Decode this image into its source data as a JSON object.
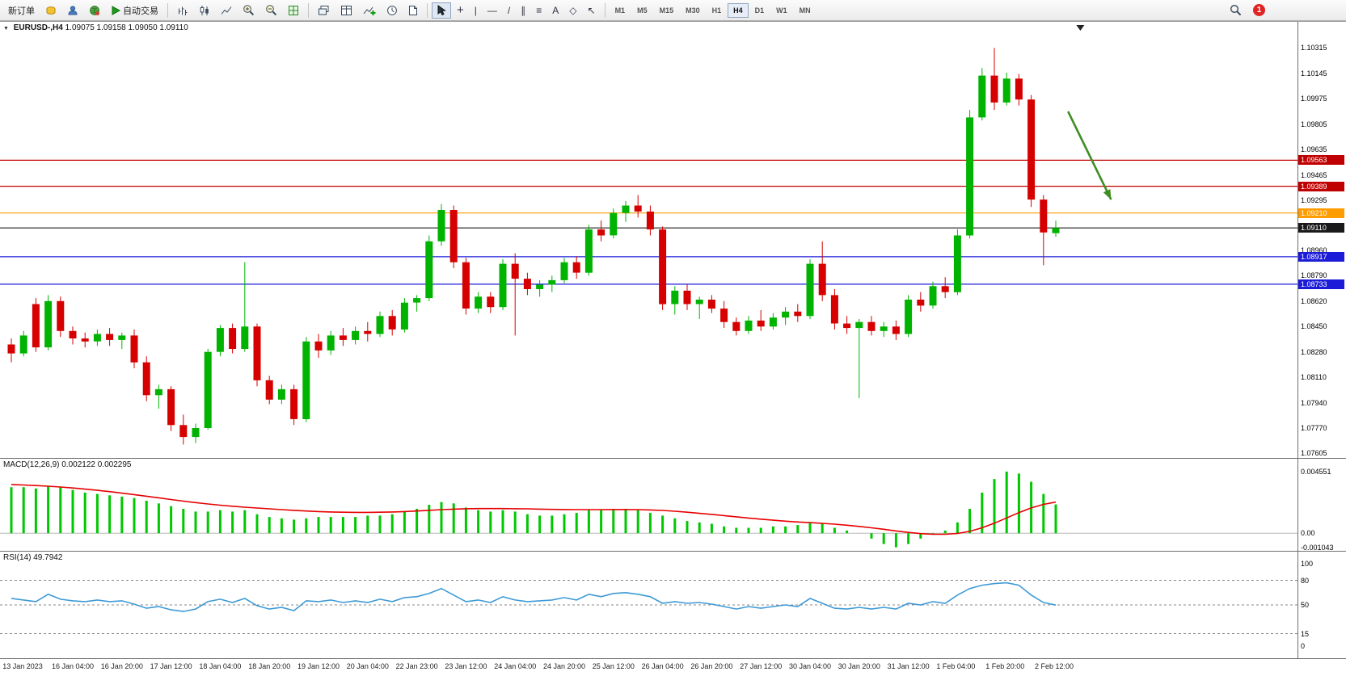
{
  "toolbar": {
    "new_order": "新订单",
    "autotrading": "自动交易",
    "timeframes": [
      "M1",
      "M5",
      "M15",
      "M30",
      "H1",
      "H4",
      "D1",
      "W1",
      "MN"
    ],
    "active_timeframe": "H4",
    "notification_count": "1"
  },
  "glyphs": {
    "collapse": "▼",
    "vline": "|",
    "hline": "—",
    "trendline": "/",
    "channel": "∥",
    "fibonacci": "≡",
    "text_tool": "A",
    "shapes": "◇",
    "arrows": "↖",
    "crosshair": "+"
  },
  "chart": {
    "title": "EURUSD-,H4",
    "ohlc": "1.09075 1.09158 1.09050 1.09110"
  },
  "chart_data": {
    "type": "candlestick",
    "symbol": "EURUSD",
    "period": "H4",
    "ohlc": {
      "open": 1.09075,
      "high": 1.09158,
      "low": 1.0905,
      "close": 1.0911
    },
    "price_range": [
      1.0757,
      1.1049
    ],
    "colors": {
      "up": "#00b300",
      "down": "#d60000"
    },
    "price_axis_ticks": [
      1.10315,
      1.10145,
      1.09975,
      1.09805,
      1.09635,
      1.09465,
      1.09295,
      1.0896,
      1.0879,
      1.0862,
      1.0845,
      1.0828,
      1.0811,
      1.0794,
      1.0777,
      1.07605
    ],
    "hlines": [
      {
        "price": 1.09563,
        "color": "#c00000",
        "current": false
      },
      {
        "price": 1.09389,
        "color": "#c00000",
        "current": false
      },
      {
        "price": 1.0921,
        "color": "#ff9c00",
        "current": false
      },
      {
        "price": 1.0911,
        "color": "#1a1a1a",
        "current": true
      },
      {
        "price": 1.08917,
        "color": "#1c1cd8",
        "current": false
      },
      {
        "price": 1.08733,
        "color": "#1c1cd8",
        "current": false
      }
    ],
    "arrow": {
      "from_index": 86,
      "from_price": 1.0989,
      "to_index": 89.5,
      "to_price": 1.093,
      "color": "#3e8e23"
    },
    "shift_marker_index": 87,
    "time_label_start_index": 1,
    "time_label_step": 4,
    "time_labels": [
      "13 Jan 2023",
      "16 Jan 04:00",
      "16 Jan 20:00",
      "17 Jan 12:00",
      "18 Jan 04:00",
      "18 Jan 20:00",
      "19 Jan 12:00",
      "20 Jan 04:00",
      "22 Jan 23:00",
      "23 Jan 12:00",
      "24 Jan 04:00",
      "24 Jan 20:00",
      "25 Jan 12:00",
      "26 Jan 04:00",
      "26 Jan 20:00",
      "27 Jan 12:00",
      "30 Jan 04:00",
      "30 Jan 20:00",
      "31 Jan 12:00",
      "1 Feb 04:00",
      "1 Feb 20:00",
      "2 Feb 12:00"
    ],
    "candles": [
      [
        1.0833,
        1.0837,
        1.0821,
        1.0827
      ],
      [
        1.0827,
        1.0842,
        1.0825,
        1.0839
      ],
      [
        1.086,
        1.0864,
        1.0828,
        1.0831
      ],
      [
        1.0831,
        1.0866,
        1.0829,
        1.0862
      ],
      [
        1.0862,
        1.0865,
        1.0838,
        1.0842
      ],
      [
        1.0842,
        1.0845,
        1.0833,
        1.0837
      ],
      [
        1.0837,
        1.0841,
        1.0831,
        1.0835
      ],
      [
        1.0835,
        1.0843,
        1.0832,
        1.084
      ],
      [
        1.084,
        1.0844,
        1.0832,
        1.0836
      ],
      [
        1.0836,
        1.0841,
        1.083,
        1.0839
      ],
      [
        1.0839,
        1.0843,
        1.0817,
        1.0821
      ],
      [
        1.0821,
        1.0825,
        1.0795,
        1.0799
      ],
      [
        1.0799,
        1.0806,
        1.079,
        1.0803
      ],
      [
        1.0803,
        1.0805,
        1.0775,
        1.0779
      ],
      [
        1.0779,
        1.0786,
        1.0766,
        1.0771
      ],
      [
        1.0771,
        1.078,
        1.0767,
        1.0777
      ],
      [
        1.0777,
        1.083,
        1.0776,
        1.0828
      ],
      [
        1.0828,
        1.0846,
        1.0825,
        1.0844
      ],
      [
        1.0844,
        1.0847,
        1.0827,
        1.083
      ],
      [
        1.083,
        1.0888,
        1.0828,
        1.0845
      ],
      [
        1.0845,
        1.0847,
        1.0805,
        1.0809
      ],
      [
        1.0809,
        1.0812,
        1.0793,
        1.0796
      ],
      [
        1.0796,
        1.0806,
        1.0793,
        1.0803
      ],
      [
        1.0803,
        1.0806,
        1.0779,
        1.0783
      ],
      [
        1.0783,
        1.0838,
        1.0781,
        1.0835
      ],
      [
        1.0835,
        1.084,
        1.0824,
        1.0829
      ],
      [
        1.0829,
        1.0842,
        1.0826,
        1.0839
      ],
      [
        1.0839,
        1.0844,
        1.0832,
        1.0836
      ],
      [
        1.0836,
        1.0845,
        1.0833,
        1.0842
      ],
      [
        1.0842,
        1.0848,
        1.0835,
        1.084
      ],
      [
        1.084,
        1.0855,
        1.0838,
        1.0852
      ],
      [
        1.0852,
        1.0856,
        1.0839,
        1.0843
      ],
      [
        1.0843,
        1.0864,
        1.0841,
        1.0861
      ],
      [
        1.0861,
        1.0866,
        1.0855,
        1.0864
      ],
      [
        1.0864,
        1.0906,
        1.0862,
        1.0902
      ],
      [
        1.0902,
        1.0927,
        1.0899,
        1.0923
      ],
      [
        1.0923,
        1.0926,
        1.0884,
        1.0888
      ],
      [
        1.0888,
        1.0891,
        1.0853,
        1.0857
      ],
      [
        1.0857,
        1.0868,
        1.0854,
        1.0865
      ],
      [
        1.0865,
        1.0868,
        1.0854,
        1.0858
      ],
      [
        1.0858,
        1.089,
        1.0856,
        1.0887
      ],
      [
        1.0887,
        1.0894,
        1.0839,
        1.0877
      ],
      [
        1.0877,
        1.0881,
        1.0866,
        1.087
      ],
      [
        1.087,
        1.0876,
        1.0865,
        1.0873
      ],
      [
        1.0873,
        1.0879,
        1.0868,
        1.0876
      ],
      [
        1.0876,
        1.0891,
        1.0874,
        1.0888
      ],
      [
        1.0888,
        1.0892,
        1.0877,
        1.0881
      ],
      [
        1.0881,
        1.0913,
        1.0879,
        1.091
      ],
      [
        1.091,
        1.0916,
        1.0902,
        1.0906
      ],
      [
        1.0906,
        1.0924,
        1.0904,
        1.0921
      ],
      [
        1.0921,
        1.0929,
        1.0915,
        1.0926
      ],
      [
        1.0926,
        1.0933,
        1.0918,
        1.0922
      ],
      [
        1.0922,
        1.0926,
        1.0906,
        1.091
      ],
      [
        1.091,
        1.0912,
        1.0856,
        1.086
      ],
      [
        1.086,
        1.0872,
        1.0853,
        1.0869
      ],
      [
        1.0869,
        1.0873,
        1.0856,
        1.086
      ],
      [
        1.086,
        1.0865,
        1.085,
        1.0863
      ],
      [
        1.0863,
        1.0866,
        1.0854,
        1.0857
      ],
      [
        1.0857,
        1.0862,
        1.0844,
        1.0848
      ],
      [
        1.0848,
        1.0851,
        1.0839,
        1.0842
      ],
      [
        1.0842,
        1.0852,
        1.084,
        1.0849
      ],
      [
        1.0849,
        1.0856,
        1.0842,
        1.0845
      ],
      [
        1.0845,
        1.0854,
        1.0843,
        1.0851
      ],
      [
        1.0851,
        1.0858,
        1.0846,
        1.0855
      ],
      [
        1.0855,
        1.086,
        1.0848,
        1.0852
      ],
      [
        1.0852,
        1.089,
        1.085,
        1.0887
      ],
      [
        1.0887,
        1.0902,
        1.0862,
        1.0866
      ],
      [
        1.0866,
        1.087,
        1.0843,
        1.0847
      ],
      [
        1.0847,
        1.0852,
        1.084,
        1.0844
      ],
      [
        1.0844,
        1.085,
        1.0797,
        1.0848
      ],
      [
        1.0848,
        1.0852,
        1.0839,
        1.0842
      ],
      [
        1.0842,
        1.0848,
        1.0838,
        1.0845
      ],
      [
        1.0845,
        1.0849,
        1.0836,
        1.084
      ],
      [
        1.084,
        1.0866,
        1.0838,
        1.0863
      ],
      [
        1.0863,
        1.0868,
        1.0855,
        1.0859
      ],
      [
        1.0859,
        1.0875,
        1.0857,
        1.0872
      ],
      [
        1.0872,
        1.0878,
        1.0864,
        1.0868
      ],
      [
        1.0868,
        1.091,
        1.0866,
        1.0906
      ],
      [
        1.0906,
        1.099,
        1.0904,
        1.0985
      ],
      [
        1.0985,
        1.1018,
        1.0983,
        1.1013
      ],
      [
        1.1013,
        1.10315,
        1.099,
        1.0995
      ],
      [
        1.0995,
        1.1015,
        1.0993,
        1.1011
      ],
      [
        1.1011,
        1.1014,
        1.0993,
        1.0997
      ],
      [
        1.0997,
        1.1,
        1.0925,
        1.093
      ],
      [
        1.093,
        1.0933,
        1.0886,
        1.0908
      ],
      [
        1.09075,
        1.09158,
        1.0905,
        1.0911
      ]
    ],
    "macd": {
      "label": "MACD(12,26,9) 0.002122 0.002295",
      "histogram_color": "#00c800",
      "signal_color": "#e60000",
      "range": [
        -0.0013,
        0.0055
      ],
      "axis": [
        {
          "label": "0.004551",
          "value": 0.004551
        },
        {
          "label": "0.00",
          "value": 0
        },
        {
          "label": "-0.001043",
          "value": -0.001043
        }
      ],
      "histogram": [
        0.0034,
        0.0034,
        0.0033,
        0.0035,
        0.0034,
        0.0032,
        0.003,
        0.0029,
        0.0028,
        0.0027,
        0.0026,
        0.0024,
        0.0022,
        0.002,
        0.0018,
        0.0016,
        0.0016,
        0.0017,
        0.0016,
        0.0017,
        0.0014,
        0.0012,
        0.0011,
        0.001,
        0.0011,
        0.0012,
        0.0012,
        0.0012,
        0.0012,
        0.0013,
        0.0013,
        0.0014,
        0.0016,
        0.0018,
        0.0021,
        0.0023,
        0.0022,
        0.0019,
        0.0017,
        0.0016,
        0.0017,
        0.0016,
        0.0014,
        0.0013,
        0.0013,
        0.0014,
        0.0015,
        0.0017,
        0.0017,
        0.0018,
        0.0018,
        0.0017,
        0.0015,
        0.0013,
        0.0011,
        0.0009,
        0.0008,
        0.0007,
        0.0005,
        0.0004,
        0.0004,
        0.0004,
        0.0005,
        0.0005,
        0.0006,
        0.0008,
        0.0007,
        0.0004,
        0.0002,
        0.0,
        -0.0004,
        -0.0008,
        -0.001043,
        -0.0008,
        -0.0004,
        -0.0001,
        0.0002,
        0.0008,
        0.0018,
        0.003,
        0.004,
        0.004551,
        0.0044,
        0.0038,
        0.0029,
        0.002122
      ],
      "signal": [
        0.0036,
        0.00356,
        0.00352,
        0.00347,
        0.00341,
        0.00334,
        0.00326,
        0.00317,
        0.00307,
        0.00296,
        0.00285,
        0.00273,
        0.00261,
        0.00249,
        0.00237,
        0.00226,
        0.00216,
        0.00207,
        0.00199,
        0.00192,
        0.00186,
        0.0018,
        0.00174,
        0.00169,
        0.00164,
        0.0016,
        0.00157,
        0.00155,
        0.00154,
        0.00154,
        0.00155,
        0.00157,
        0.0016,
        0.00164,
        0.00169,
        0.00174,
        0.00178,
        0.00181,
        0.00182,
        0.00182,
        0.00182,
        0.00181,
        0.0018,
        0.00178,
        0.00176,
        0.00175,
        0.00174,
        0.00174,
        0.00174,
        0.00175,
        0.00175,
        0.00174,
        0.00172,
        0.00168,
        0.00162,
        0.00155,
        0.00147,
        0.00139,
        0.0013,
        0.00121,
        0.00112,
        0.00104,
        0.00096,
        0.00089,
        0.00083,
        0.00078,
        0.00073,
        0.00067,
        0.00059,
        0.0005,
        0.0004,
        0.00029,
        0.00017,
        6e-05,
        -3e-05,
        -8e-05,
        -8e-05,
        -2e-05,
        0.00014,
        0.0004,
        0.00074,
        0.00113,
        0.00152,
        0.00187,
        0.00213,
        0.002295
      ]
    },
    "rsi": {
      "label": "RSI(14) 49.7942",
      "line_color": "#3e9ad6",
      "range": [
        -15,
        115
      ],
      "axis": [
        {
          "label": "100",
          "value": 100
        },
        {
          "label": "80",
          "value": 80
        },
        {
          "label": "50",
          "value": 50
        },
        {
          "label": "15",
          "value": 15
        },
        {
          "label": "0",
          "value": 0
        }
      ],
      "levels_dashed": [
        80,
        50,
        15
      ],
      "values": [
        58,
        56,
        54,
        63,
        57,
        55,
        54,
        56,
        54,
        55,
        51,
        46,
        48,
        44,
        42,
        45,
        54,
        57,
        53,
        58,
        49,
        45,
        47,
        43,
        55,
        54,
        56,
        53,
        55,
        53,
        57,
        54,
        59,
        60,
        64,
        70,
        62,
        54,
        56,
        53,
        60,
        56,
        54,
        55,
        56,
        59,
        56,
        63,
        60,
        64,
        65,
        63,
        60,
        52,
        54,
        52,
        53,
        51,
        48,
        45,
        48,
        46,
        48,
        50,
        48,
        58,
        52,
        46,
        45,
        47,
        45,
        47,
        45,
        52,
        50,
        54,
        52,
        62,
        70,
        74,
        76,
        77,
        74,
        62,
        53,
        49.7942
      ]
    }
  }
}
